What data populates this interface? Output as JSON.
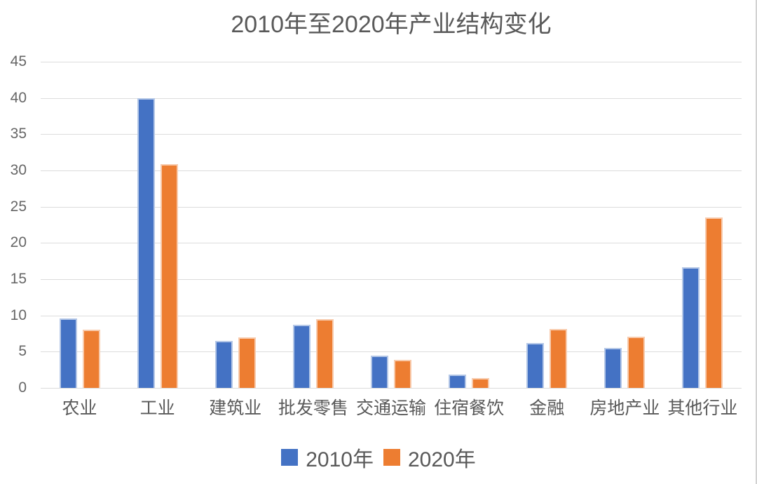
{
  "chart_data": {
    "type": "bar",
    "title": "2010年至2020年产业结构变化",
    "categories": [
      "农业",
      "工业",
      "建筑业",
      "批发零售",
      "交通运输",
      "住宿餐饮",
      "金融",
      "房地产业",
      "其他行业"
    ],
    "series": [
      {
        "name": "2010年",
        "color": "#4472C4",
        "border_color": "#b4c7e7",
        "values": [
          9.6,
          40,
          6.5,
          8.7,
          4.5,
          1.8,
          6.2,
          5.5,
          16.6
        ]
      },
      {
        "name": "2020年",
        "color": "#ED7D31",
        "border_color": "#f8cbad",
        "values": [
          8,
          30.9,
          7,
          9.5,
          3.9,
          1.4,
          8.1,
          7.1,
          23.5
        ]
      }
    ],
    "xlabel": "",
    "ylabel": "",
    "y_axis": {
      "min": 0,
      "max": 45,
      "tick_step": 5,
      "ticks": [
        0,
        5,
        10,
        15,
        20,
        25,
        30,
        35,
        40,
        45
      ]
    },
    "grid": true,
    "legend_position": "bottom",
    "colors": {
      "gridline": "#dcdcdc",
      "axis_text": "#666666",
      "title_text": "#595959",
      "background": "#ffffff"
    }
  }
}
